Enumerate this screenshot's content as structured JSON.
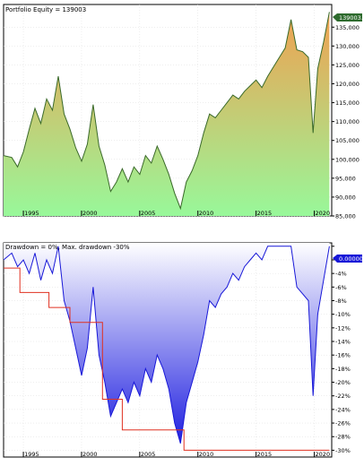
{
  "chart_data": [
    {
      "type": "area",
      "title": "Portfolio Equity = 139003",
      "xlabel": "",
      "ylabel": "",
      "x_range": [
        1993.3,
        2021.5
      ],
      "ylim": [
        85000,
        141000
      ],
      "y_ticks": [
        85000,
        90000,
        95000,
        100000,
        105000,
        110000,
        115000,
        120000,
        125000,
        130000,
        135000
      ],
      "y_tick_labels": [
        "85,000",
        "90,000",
        "95,000",
        "100,000",
        "105,000",
        "110,000",
        "115,000",
        "120,000",
        "125,000",
        "130,000",
        "135,000"
      ],
      "x_ticks": [
        1995,
        2000,
        2005,
        2010,
        2015,
        2020
      ],
      "x_tick_labels": [
        "1995",
        "2000",
        "2005",
        "2010",
        "2015",
        "2020"
      ],
      "last_value_label": "139003.00",
      "fill_colors": {
        "top": "#f0a050",
        "bottom": "#98f89a"
      },
      "line_color": "#3a6a2a",
      "grid": true,
      "series": [
        {
          "x": [
            1993.3,
            1994.0,
            1994.5,
            1995.0,
            1995.5,
            1996.0,
            1996.5,
            1997.0,
            1997.5,
            1998.0,
            1998.5,
            1999.0,
            1999.5,
            2000.0,
            2000.5,
            2001.0,
            2001.5,
            2002.0,
            2002.5,
            2003.0,
            2003.5,
            2004.0,
            2004.5,
            2005.0,
            2005.5,
            2006.0,
            2006.5,
            2007.0,
            2007.5,
            2008.0,
            2008.5,
            2009.0,
            2009.5,
            2010.0,
            2010.5,
            2011.0,
            2011.5,
            2012.0,
            2012.5,
            2013.0,
            2013.5,
            2014.0,
            2014.5,
            2015.0,
            2015.5,
            2016.0,
            2016.5,
            2017.0,
            2017.5,
            2018.0,
            2018.5,
            2019.0,
            2019.5,
            2019.9,
            2020.3,
            2020.8,
            2021.3
          ],
          "values": [
            101000,
            100500,
            98000,
            102000,
            108000,
            113500,
            109500,
            116000,
            113000,
            122000,
            112000,
            108000,
            103000,
            99500,
            104000,
            114500,
            103500,
            98500,
            91500,
            94000,
            97500,
            94000,
            98000,
            96000,
            101000,
            99000,
            103500,
            100000,
            96000,
            91000,
            87000,
            94000,
            97000,
            101000,
            107000,
            112000,
            111000,
            113000,
            115000,
            117000,
            116000,
            118000,
            119500,
            121000,
            119000,
            122000,
            124500,
            127000,
            129500,
            137000,
            129000,
            128500,
            127000,
            107000,
            124000,
            131000,
            139003
          ]
        }
      ]
    },
    {
      "type": "area",
      "title": "Drawdown = 0%, Max. drawdown -30%",
      "xlabel": "",
      "ylabel": "",
      "x_range": [
        1993.3,
        2021.5
      ],
      "ylim": [
        -31,
        0.5
      ],
      "y_ticks": [
        0,
        -2,
        -4,
        -6,
        -8,
        -10,
        -12,
        -14,
        -16,
        -18,
        -20,
        -22,
        -24,
        -26,
        -28,
        -30
      ],
      "y_tick_labels": [
        "0.00000",
        "-2%",
        "-4%",
        "-6%",
        "-8%",
        "-10%",
        "-12%",
        "-14%",
        "-16%",
        "-18%",
        "-20%",
        "-22%",
        "-24%",
        "-26%",
        "-28%",
        "-30%"
      ],
      "x_ticks": [
        1995,
        2000,
        2005,
        2010,
        2015,
        2020
      ],
      "x_tick_labels": [
        "1995",
        "2000",
        "2005",
        "2010",
        "2015",
        "2020"
      ],
      "last_value_label": "0.00000",
      "fill_colors": {
        "top": "#ffffff",
        "bottom": "#2020e0"
      },
      "line_color": "#1818d8",
      "grid": true,
      "series": [
        {
          "name": "Drawdown",
          "x": [
            1993.3,
            1994.0,
            1994.5,
            1995.0,
            1995.5,
            1996.0,
            1996.5,
            1997.0,
            1997.5,
            1998.0,
            1998.5,
            1999.0,
            1999.5,
            2000.0,
            2000.5,
            2001.0,
            2001.5,
            2002.0,
            2002.5,
            2003.0,
            2003.5,
            2004.0,
            2004.5,
            2005.0,
            2005.5,
            2006.0,
            2006.5,
            2007.0,
            2007.5,
            2008.0,
            2008.5,
            2009.0,
            2009.5,
            2010.0,
            2010.5,
            2011.0,
            2011.5,
            2012.0,
            2012.5,
            2013.0,
            2013.5,
            2014.0,
            2014.5,
            2015.0,
            2015.5,
            2016.0,
            2016.5,
            2017.0,
            2017.5,
            2018.0,
            2018.5,
            2019.0,
            2019.5,
            2019.9,
            2020.3,
            2020.8,
            2021.3
          ],
          "values": [
            -2,
            -1,
            -3,
            -2,
            -4,
            -1,
            -5,
            -2,
            -4,
            0,
            -8,
            -11,
            -15,
            -19,
            -15,
            -6,
            -16,
            -20,
            -25,
            -23,
            -21,
            -23,
            -20,
            -22,
            -18,
            -20,
            -16,
            -18,
            -21,
            -26,
            -29,
            -23,
            -20,
            -17,
            -13,
            -8,
            -9,
            -7,
            -6,
            -4,
            -5,
            -3,
            -2,
            -1,
            -2,
            0,
            0,
            0,
            0,
            0,
            -6,
            -7,
            -8,
            -22,
            -10,
            -5,
            0
          ]
        },
        {
          "name": "Max. drawdown",
          "x": [
            1993.3,
            1994.7,
            1994.7,
            1997.2,
            1997.2,
            1999.0,
            1999.0,
            2001.8,
            2001.8,
            2003.5,
            2003.5,
            2008.8,
            2008.8,
            2021.3
          ],
          "values": [
            -3.2,
            -3.2,
            -6.8,
            -6.8,
            -9,
            -9,
            -11.2,
            -11.2,
            -22.5,
            -22.5,
            -27,
            -27,
            -30,
            -30
          ]
        }
      ]
    }
  ]
}
